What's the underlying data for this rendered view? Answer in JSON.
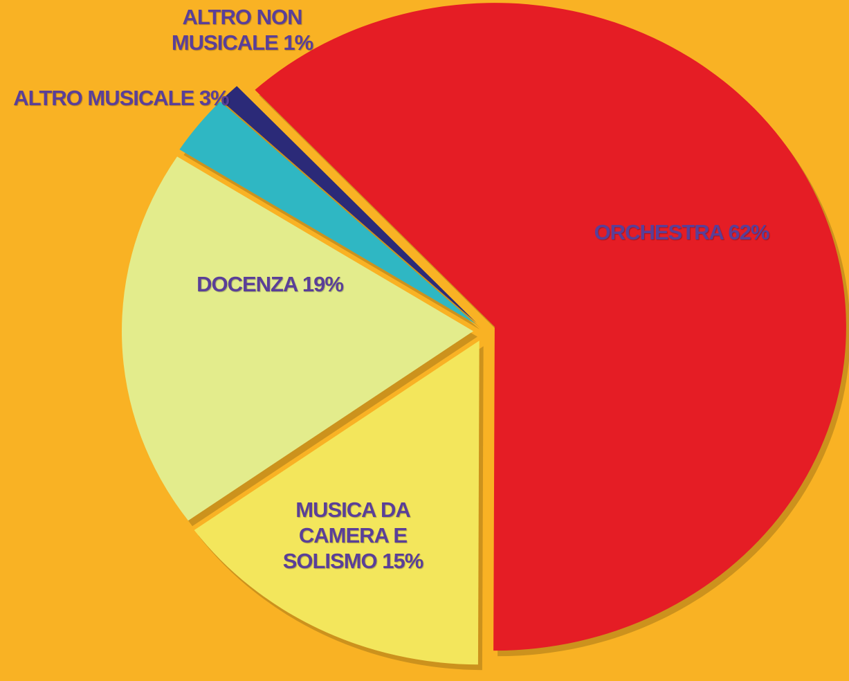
{
  "chart_data": {
    "type": "pie",
    "categories": [
      "ORCHESTRA",
      "MUSICA DA CAMERA E SOLISMO",
      "DOCENZA",
      "ALTRO MUSICALE",
      "ALTRO NON MUSICALE"
    ],
    "values": [
      62,
      15,
      19,
      3,
      1
    ],
    "value_labels": [
      "62%",
      "15%",
      "19%",
      "3%",
      "1%"
    ],
    "colors": [
      "#e51d25",
      "#f3e65c",
      "#e3ec8c",
      "#2fb7c3",
      "#2b2a78"
    ]
  }
}
